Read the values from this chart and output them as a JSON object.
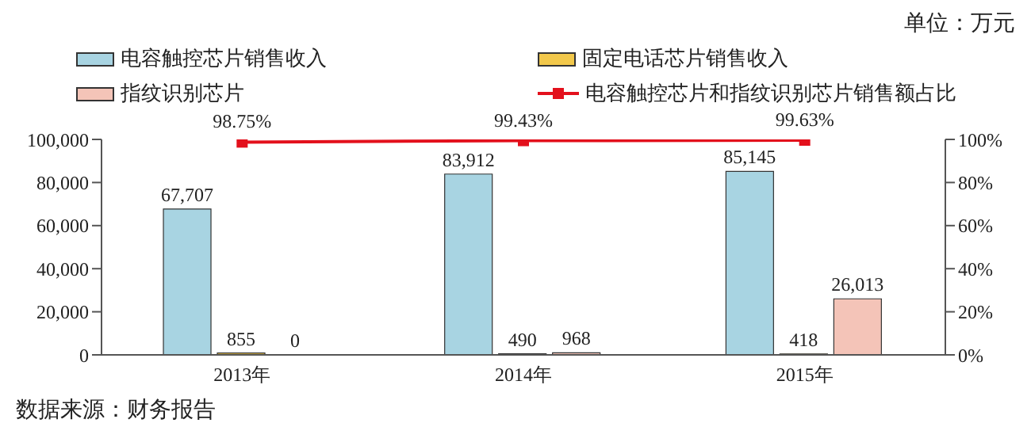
{
  "chart_data": {
    "type": "bar",
    "categories": [
      "2013年",
      "2014年",
      "2015年"
    ],
    "series": [
      {
        "name": "电容触控芯片销售收入",
        "color": "#a8d4e2",
        "values": [
          67707,
          83912,
          85145
        ],
        "value_labels": [
          "67,707",
          "83,912",
          "85,145"
        ]
      },
      {
        "name": "固定电话芯片销售收入",
        "color": "#f2c84b",
        "values": [
          855,
          490,
          418
        ],
        "value_labels": [
          "855",
          "490",
          "418"
        ]
      },
      {
        "name": "指纹识别芯片",
        "color": "#f4c4b8",
        "values": [
          0,
          968,
          26013
        ],
        "value_labels": [
          "0",
          "968",
          "26,013"
        ]
      },
      {
        "name": "电容触控芯片和指纹识别芯片销售额占比",
        "type": "line",
        "axis": "y2",
        "color": "#e3101c",
        "marker": "square",
        "values": [
          98.75,
          99.43,
          99.63
        ],
        "value_labels": [
          "98.75%",
          "99.43%",
          "99.63%"
        ]
      }
    ],
    "ylim": [
      0,
      100000
    ],
    "yticks": [
      {
        "value": 0,
        "label": "0"
      },
      {
        "value": 20000,
        "label": "20,000"
      },
      {
        "value": 40000,
        "label": "40,000"
      },
      {
        "value": 60000,
        "label": "60,000"
      },
      {
        "value": 80000,
        "label": "80,000"
      },
      {
        "value": 100000,
        "label": "100,000"
      }
    ],
    "y2lim": [
      0,
      100
    ],
    "y2ticks": [
      {
        "value": 0,
        "label": "0%"
      },
      {
        "value": 20,
        "label": "20%"
      },
      {
        "value": 40,
        "label": "40%"
      },
      {
        "value": 60,
        "label": "60%"
      },
      {
        "value": 80,
        "label": "80%"
      },
      {
        "value": 100,
        "label": "100%"
      }
    ],
    "legend": "top",
    "annotations": [
      "单位：万元",
      "数据来源：财务报告"
    ]
  }
}
